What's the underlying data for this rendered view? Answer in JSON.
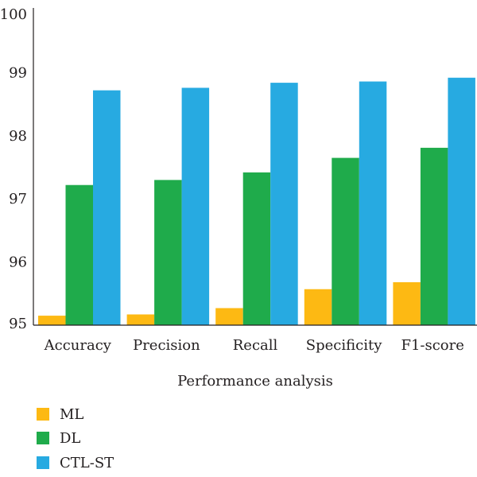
{
  "chart_data": {
    "type": "bar",
    "title": "",
    "xlabel": "Performance analysis",
    "ylabel": "",
    "ylim": [
      95,
      100
    ],
    "yticks": [
      95,
      96,
      97,
      98,
      99,
      100
    ],
    "categories": [
      "Accuracy",
      "Precision",
      "Recall",
      "Specificity",
      "F1-score"
    ],
    "series": [
      {
        "name": "ML",
        "color": "#fdb913",
        "values": [
          95.15,
          95.17,
          95.27,
          95.57,
          95.68
        ]
      },
      {
        "name": "DL",
        "color": "#1fab4b",
        "values": [
          97.22,
          97.3,
          97.42,
          97.65,
          97.81
        ]
      },
      {
        "name": "CTL-ST",
        "color": "#27aae1",
        "values": [
          98.72,
          98.76,
          98.84,
          98.86,
          98.92
        ]
      }
    ],
    "grid": false,
    "legend_position": "bottom-left"
  }
}
